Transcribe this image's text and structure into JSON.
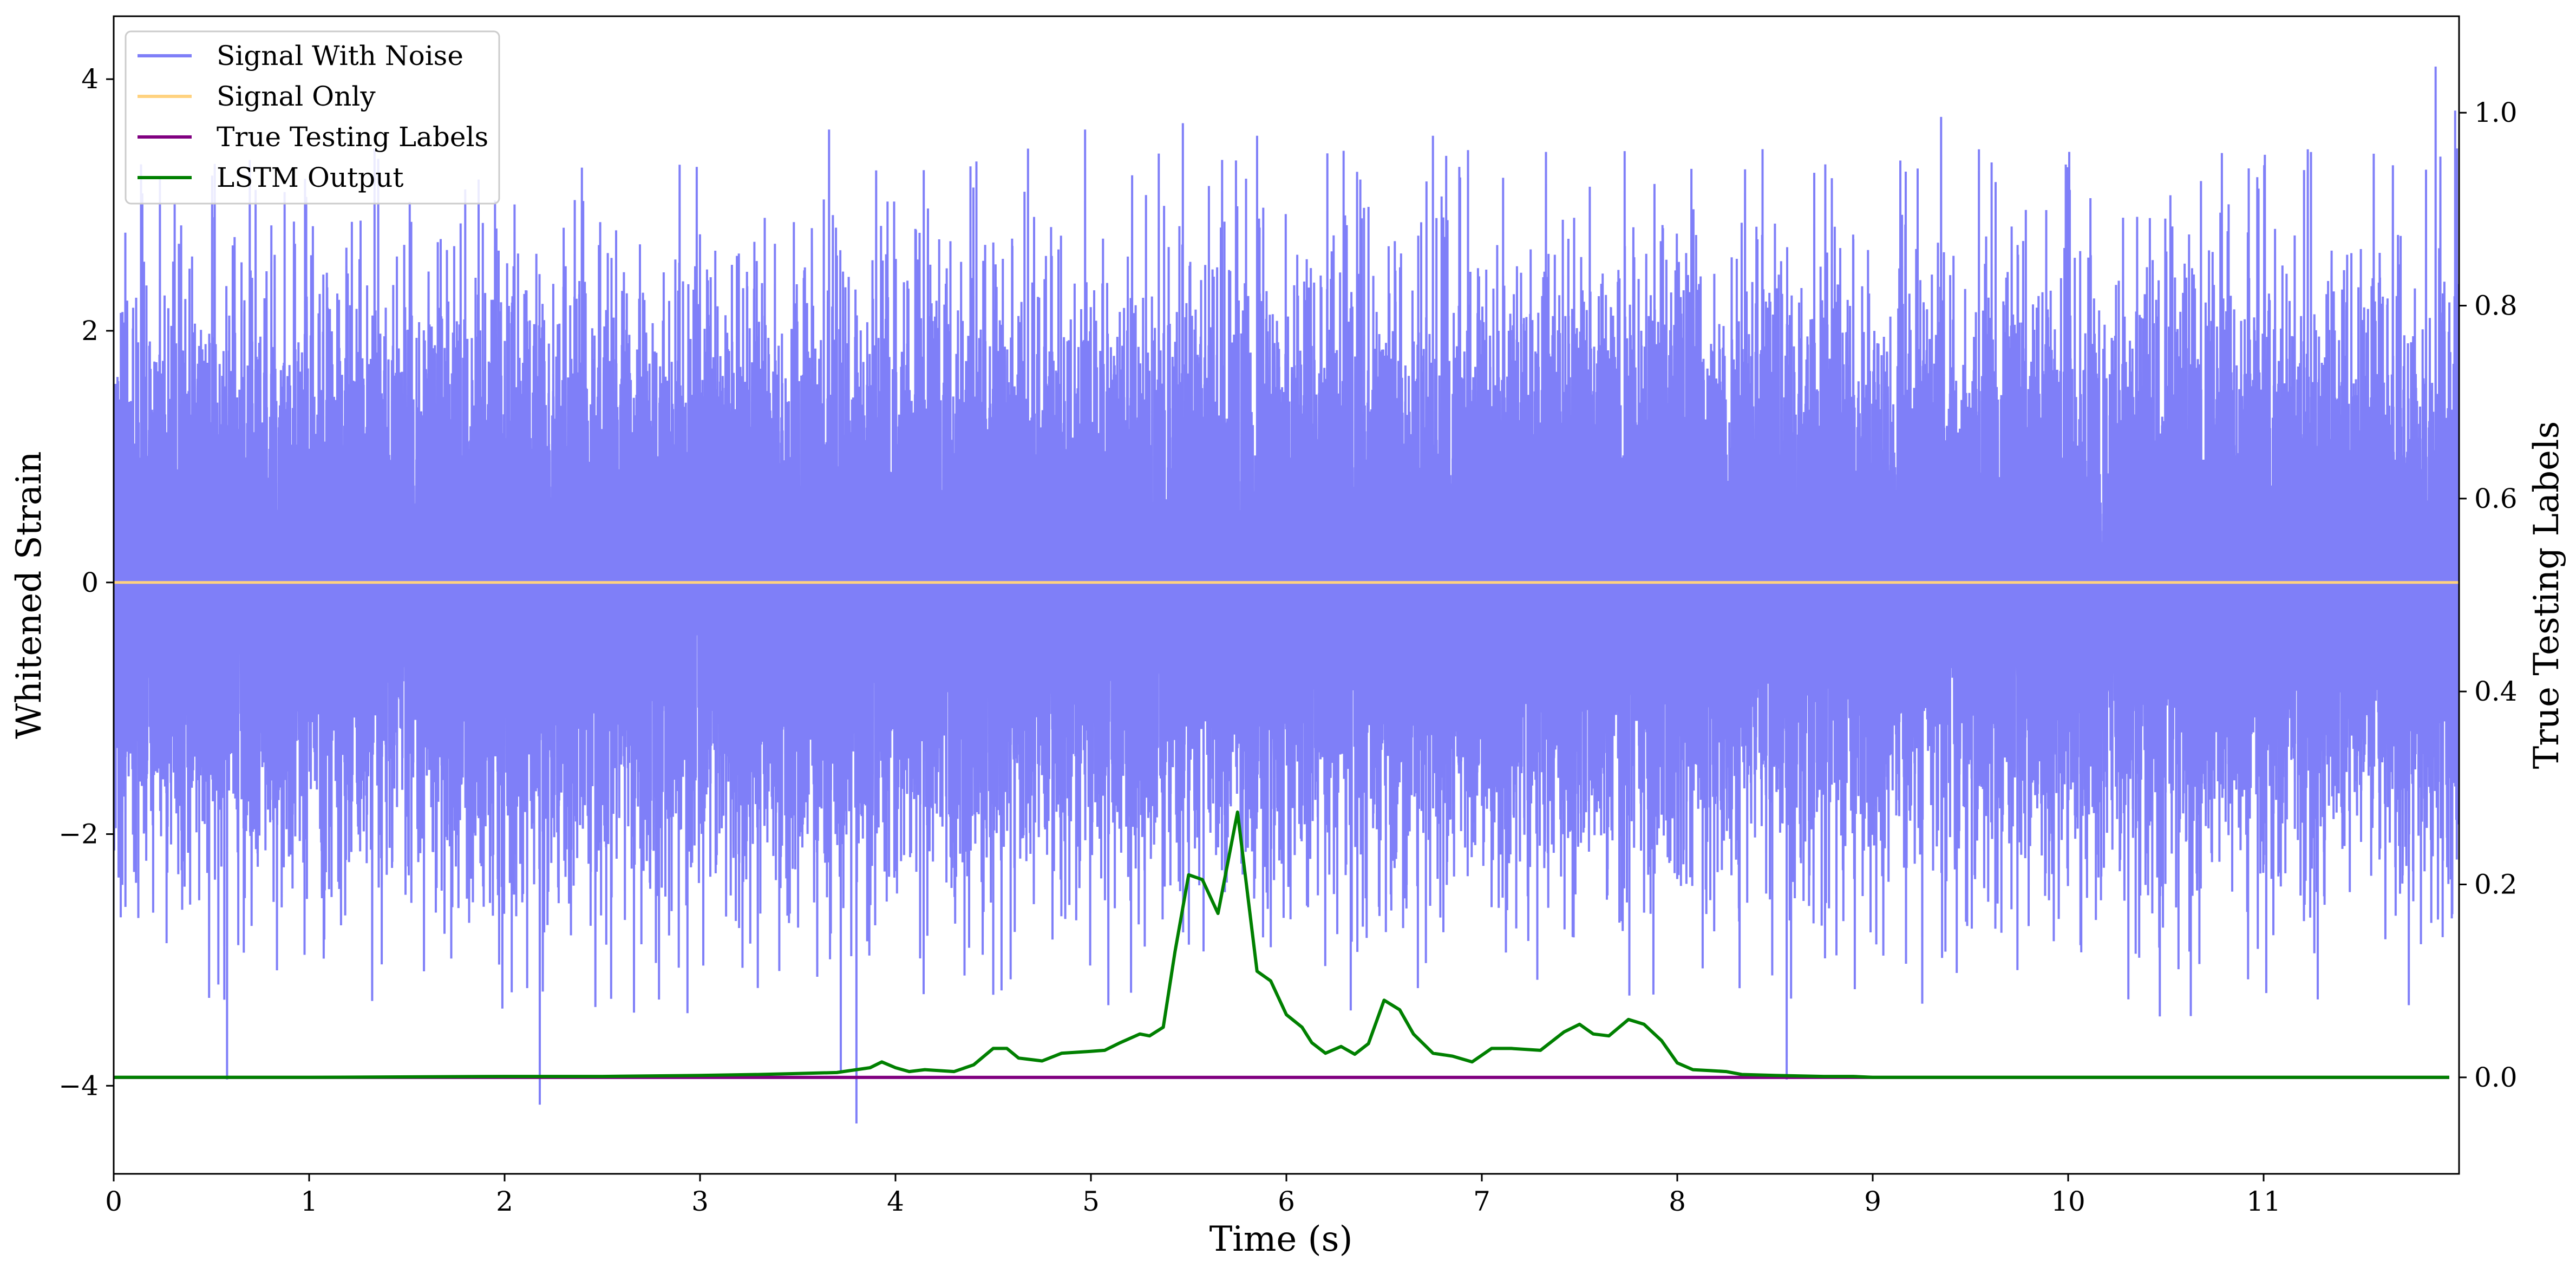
{
  "chart_data": {
    "type": "line",
    "xlabel": "Time (s)",
    "ylabel": "Whitened Strain",
    "ylabel_right": "True Testing Labels",
    "xlim": [
      0,
      12
    ],
    "ylim": [
      -4.7,
      4.5
    ],
    "ylim_right": [
      -0.1,
      1.1
    ],
    "x_ticks": [
      "0",
      "1",
      "2",
      "3",
      "4",
      "5",
      "6",
      "7",
      "8",
      "9",
      "10",
      "11"
    ],
    "y_ticks": [
      "−4",
      "−2",
      "0",
      "2",
      "4"
    ],
    "y_ticks_right": [
      "0.0",
      "0.2",
      "0.4",
      "0.6",
      "0.8",
      "1.0"
    ],
    "legend": {
      "placement": "upper-left",
      "entries": [
        "Signal With Noise",
        "Signal Only",
        "True Testing Labels",
        "LSTM Output"
      ]
    },
    "colors": {
      "noise": "#7f7ff8",
      "signal": "#ffd27f",
      "labels": "#800080",
      "lstm": "#008000"
    },
    "series": [
      {
        "name": "Signal With Noise",
        "axis": "left",
        "description_free": true,
        "noise_sigma": 1.1,
        "samples": 24000,
        "extremes": [
          [
            0.58,
            -3.95
          ],
          [
            2.18,
            -4.15
          ],
          [
            3.8,
            -4.3
          ],
          [
            3.72,
            -3.9
          ],
          [
            8.56,
            -3.95
          ],
          [
            11.88,
            4.1
          ],
          [
            11.98,
            3.75
          ],
          [
            3.66,
            3.6
          ],
          [
            4.97,
            3.6
          ],
          [
            5.47,
            3.65
          ],
          [
            5.85,
            3.55
          ],
          [
            6.75,
            3.55
          ],
          [
            9.35,
            3.7
          ]
        ]
      },
      {
        "name": "Signal Only",
        "axis": "left",
        "x": [
          0,
          12
        ],
        "y": [
          0,
          0
        ]
      },
      {
        "name": "True Testing Labels",
        "axis": "right",
        "x": [
          0,
          11.95
        ],
        "y": [
          0,
          0
        ]
      },
      {
        "name": "LSTM Output",
        "axis": "right",
        "x": [
          0.0,
          1.0,
          2.0,
          2.5,
          3.0,
          3.3,
          3.5,
          3.7,
          3.8,
          3.87,
          3.93,
          4.0,
          4.07,
          4.15,
          4.3,
          4.4,
          4.5,
          4.57,
          4.63,
          4.75,
          4.85,
          5.0,
          5.07,
          5.15,
          5.25,
          5.3,
          5.37,
          5.43,
          5.5,
          5.57,
          5.65,
          5.75,
          5.85,
          5.92,
          6.0,
          6.08,
          6.13,
          6.2,
          6.28,
          6.35,
          6.42,
          6.5,
          6.58,
          6.65,
          6.75,
          6.85,
          6.95,
          7.05,
          7.15,
          7.3,
          7.42,
          7.5,
          7.57,
          7.65,
          7.75,
          7.83,
          7.92,
          8.0,
          8.08,
          8.17,
          8.25,
          8.33,
          8.5,
          8.75,
          8.9,
          9.0,
          9.25,
          9.5,
          10.0,
          11.0,
          11.95
        ],
        "y": [
          0.0,
          0.0,
          0.001,
          0.001,
          0.002,
          0.003,
          0.004,
          0.005,
          0.008,
          0.01,
          0.016,
          0.01,
          0.006,
          0.008,
          0.006,
          0.013,
          0.03,
          0.03,
          0.02,
          0.017,
          0.025,
          0.027,
          0.028,
          0.036,
          0.045,
          0.043,
          0.052,
          0.13,
          0.21,
          0.205,
          0.17,
          0.275,
          0.11,
          0.1,
          0.065,
          0.052,
          0.036,
          0.025,
          0.032,
          0.024,
          0.035,
          0.08,
          0.07,
          0.045,
          0.025,
          0.022,
          0.016,
          0.03,
          0.03,
          0.028,
          0.047,
          0.055,
          0.045,
          0.043,
          0.06,
          0.055,
          0.038,
          0.015,
          0.008,
          0.007,
          0.006,
          0.003,
          0.002,
          0.001,
          0.001,
          0.0,
          0.0,
          0.0,
          0.0,
          0.0,
          0.0
        ]
      }
    ]
  }
}
